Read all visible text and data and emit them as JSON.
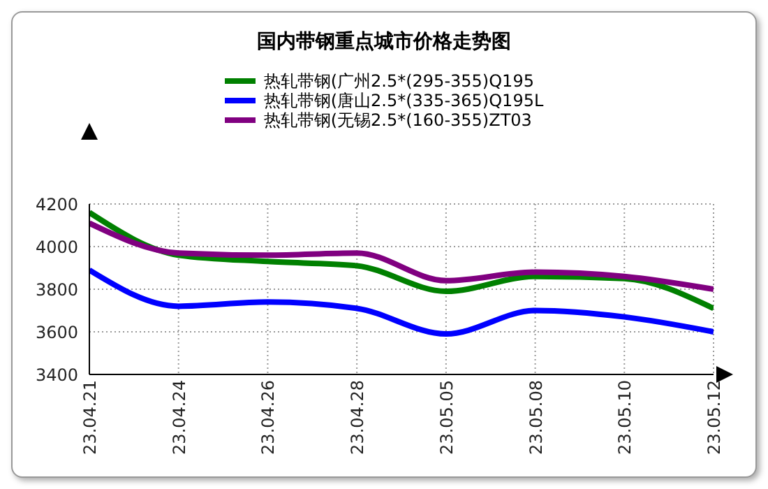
{
  "chart_data": {
    "type": "line",
    "title": "国内带钢重点城市价格走势图",
    "categories": [
      "23.04.21",
      "23.04.24",
      "23.04.26",
      "23.04.28",
      "23.05.05",
      "23.05.08",
      "23.05.10",
      "23.05.12"
    ],
    "series": [
      {
        "name": "热轧带钢(广州2.5*(295-355)Q195",
        "color": "#008000",
        "values": [
          4160,
          3960,
          3930,
          3910,
          3790,
          3860,
          3850,
          3710
        ]
      },
      {
        "name": "热轧带钢(唐山2.5*(335-365)Q195L",
        "color": "#0000ff",
        "values": [
          3890,
          3720,
          3740,
          3710,
          3590,
          3700,
          3670,
          3600
        ]
      },
      {
        "name": "热轧带钢(无锡2.5*(160-355)ZT03",
        "color": "#800080",
        "values": [
          4110,
          3970,
          3960,
          3970,
          3840,
          3880,
          3860,
          3800
        ]
      }
    ],
    "ylim": [
      3400,
      4200
    ],
    "yticks": [
      3400,
      3600,
      3800,
      4000,
      4200
    ],
    "grid": true,
    "legend": "top",
    "marker": "none",
    "line_style": "solid"
  }
}
